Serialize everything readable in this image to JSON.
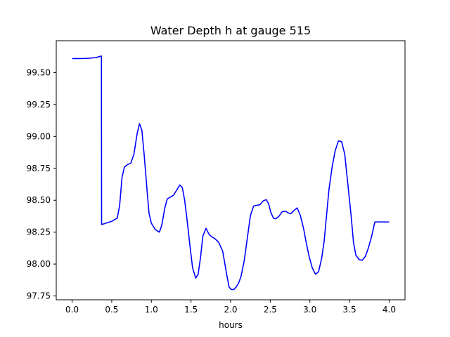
{
  "chart_data": {
    "type": "line",
    "title": "Water Depth h at gauge 515",
    "xlabel": "hours",
    "ylabel": "",
    "xlim": [
      -0.2,
      4.2
    ],
    "ylim": [
      97.72,
      99.75
    ],
    "grid": false,
    "x_ticks": [
      0.0,
      0.5,
      1.0,
      1.5,
      2.0,
      2.5,
      3.0,
      3.5,
      4.0
    ],
    "x_tick_labels": [
      "0.0",
      "0.5",
      "1.0",
      "1.5",
      "2.0",
      "2.5",
      "3.0",
      "3.5",
      "4.0"
    ],
    "y_ticks": [
      97.75,
      98.0,
      98.25,
      98.5,
      98.75,
      99.0,
      99.25,
      99.5
    ],
    "y_tick_labels": [
      "97.75",
      "98.00",
      "98.25",
      "98.50",
      "98.75",
      "99.00",
      "99.25",
      "99.50"
    ],
    "series": [
      {
        "color": "#0000ff",
        "x": [
          0.0,
          0.1,
          0.2,
          0.3,
          0.37,
          0.372,
          0.4,
          0.45,
          0.5,
          0.57,
          0.6,
          0.63,
          0.66,
          0.7,
          0.74,
          0.78,
          0.82,
          0.85,
          0.88,
          0.91,
          0.94,
          0.97,
          1.0,
          1.05,
          1.1,
          1.13,
          1.17,
          1.2,
          1.24,
          1.28,
          1.32,
          1.36,
          1.39,
          1.42,
          1.45,
          1.48,
          1.52,
          1.56,
          1.59,
          1.62,
          1.65,
          1.69,
          1.73,
          1.77,
          1.8,
          1.85,
          1.9,
          1.95,
          1.98,
          2.01,
          2.04,
          2.07,
          2.1,
          2.13,
          2.17,
          2.21,
          2.25,
          2.29,
          2.33,
          2.37,
          2.41,
          2.45,
          2.48,
          2.51,
          2.54,
          2.57,
          2.61,
          2.65,
          2.69,
          2.73,
          2.76,
          2.8,
          2.84,
          2.88,
          2.92,
          2.95,
          2.99,
          3.03,
          3.07,
          3.11,
          3.15,
          3.18,
          3.21,
          3.24,
          3.28,
          3.32,
          3.36,
          3.4,
          3.44,
          3.48,
          3.52,
          3.55,
          3.58,
          3.62,
          3.66,
          3.7,
          3.74,
          3.78,
          3.82,
          3.85,
          3.88,
          3.92,
          3.96,
          4.0
        ],
        "y": [
          99.61,
          99.61,
          99.612,
          99.618,
          99.63,
          98.31,
          98.315,
          98.325,
          98.335,
          98.36,
          98.46,
          98.68,
          98.76,
          98.78,
          98.79,
          98.86,
          99.02,
          99.1,
          99.05,
          98.85,
          98.62,
          98.4,
          98.32,
          98.27,
          98.25,
          98.3,
          98.44,
          98.51,
          98.525,
          98.54,
          98.58,
          98.62,
          98.6,
          98.5,
          98.35,
          98.18,
          97.97,
          97.89,
          97.92,
          98.05,
          98.22,
          98.28,
          98.23,
          98.21,
          98.2,
          98.17,
          98.1,
          97.92,
          97.82,
          97.8,
          97.8,
          97.82,
          97.85,
          97.9,
          98.02,
          98.2,
          98.38,
          98.455,
          98.46,
          98.465,
          98.495,
          98.505,
          98.47,
          98.4,
          98.36,
          98.355,
          98.375,
          98.41,
          98.415,
          98.4,
          98.395,
          98.42,
          98.44,
          98.38,
          98.28,
          98.18,
          98.06,
          97.97,
          97.92,
          97.94,
          98.05,
          98.18,
          98.38,
          98.58,
          98.76,
          98.89,
          98.965,
          98.96,
          98.86,
          98.62,
          98.38,
          98.17,
          98.07,
          98.035,
          98.03,
          98.06,
          98.13,
          98.22,
          98.33,
          98.33,
          98.33,
          98.33,
          98.33,
          98.33
        ]
      }
    ]
  }
}
